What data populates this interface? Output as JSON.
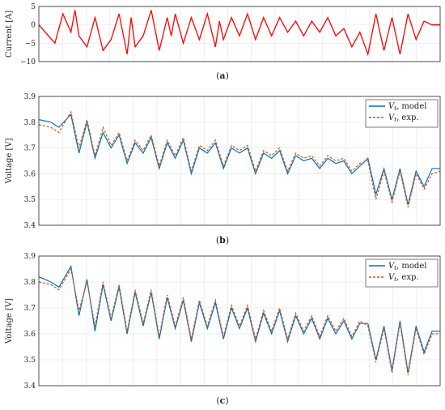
{
  "panels": [
    {
      "label_parts": [
        "(",
        "a",
        ")"
      ],
      "ylabel": "Current [A]",
      "ylim": [
        -10,
        5
      ],
      "yticks": [
        "5",
        "0",
        "−5",
        "−10"
      ]
    },
    {
      "label_parts": [
        "(",
        "b",
        ")"
      ],
      "ylabel": "Voltage [V]",
      "ylim": [
        3.4,
        3.9
      ],
      "yticks": [
        "3.9",
        "3.8",
        "3.7",
        "3.6",
        "3.5",
        "3.4"
      ],
      "legend": [
        {
          "sym": "V",
          "sub": "t",
          "suffix": ", model"
        },
        {
          "sym": "V",
          "sub": "t",
          "suffix": ", exp."
        }
      ]
    },
    {
      "label_parts": [
        "(",
        "c",
        ")"
      ],
      "ylabel": "Voltage [V]",
      "ylim": [
        3.4,
        3.9
      ],
      "yticks": [
        "3.9",
        "3.8",
        "3.7",
        "3.6",
        "3.5",
        "3.4"
      ],
      "legend": [
        {
          "sym": "V",
          "sub": "t",
          "suffix": ", model"
        },
        {
          "sym": "V",
          "sub": "t",
          "suffix": ", exp."
        }
      ]
    }
  ],
  "colors": {
    "current": "#ff0000",
    "model": "#0072bd",
    "exp": "#d95319",
    "grid": "#e6e6e6",
    "axis": "#262626"
  },
  "chart_data": [
    {
      "type": "line",
      "ylabel": "Current [A]",
      "ylim": [
        -10,
        5
      ],
      "grid": true,
      "series": [
        {
          "x": [
            0,
            4,
            6,
            8,
            9,
            10,
            12,
            14,
            16,
            18,
            20,
            22,
            23,
            24,
            26,
            28,
            30,
            32,
            33,
            34,
            36,
            38,
            40,
            42,
            44,
            45,
            46,
            48,
            50,
            52,
            54,
            56,
            58,
            60,
            62,
            64,
            66,
            68,
            70,
            72,
            74,
            76,
            78,
            80,
            82,
            84,
            86,
            88,
            90,
            92,
            94,
            96,
            98,
            100
          ],
          "values": [
            0,
            -5,
            3,
            -2,
            4,
            -3,
            -6,
            2,
            -7,
            -4,
            3,
            -8,
            2,
            -6,
            -3,
            4,
            -7,
            2,
            -3,
            3,
            -5,
            2,
            -4,
            3,
            -6,
            1,
            -4,
            2,
            -3,
            3,
            -4,
            2,
            -3,
            2,
            -2,
            1,
            -3,
            1,
            -2,
            2,
            -3,
            -1,
            -6,
            -2,
            -8,
            3,
            -7,
            2,
            -8,
            3,
            -4,
            1,
            0,
            0
          ]
        }
      ]
    },
    {
      "type": "line",
      "ylabel": "Voltage [V]",
      "ylim": [
        3.4,
        3.9
      ],
      "grid": true,
      "legend": "top-right",
      "x": [
        0,
        3,
        5,
        8,
        10,
        12,
        14,
        16,
        18,
        20,
        22,
        24,
        26,
        28,
        30,
        32,
        34,
        36,
        38,
        40,
        42,
        44,
        46,
        48,
        50,
        52,
        54,
        56,
        58,
        60,
        62,
        64,
        66,
        68,
        70,
        72,
        74,
        76,
        78,
        80,
        82,
        84,
        86,
        88,
        90,
        92,
        94,
        96,
        98,
        100
      ],
      "series": [
        {
          "values": [
            3.81,
            3.8,
            3.78,
            3.83,
            3.68,
            3.8,
            3.66,
            3.76,
            3.7,
            3.75,
            3.64,
            3.72,
            3.68,
            3.74,
            3.62,
            3.72,
            3.66,
            3.73,
            3.6,
            3.7,
            3.68,
            3.72,
            3.62,
            3.7,
            3.68,
            3.7,
            3.6,
            3.68,
            3.66,
            3.69,
            3.6,
            3.67,
            3.65,
            3.66,
            3.62,
            3.66,
            3.64,
            3.65,
            3.6,
            3.63,
            3.66,
            3.52,
            3.62,
            3.5,
            3.62,
            3.48,
            3.61,
            3.55,
            3.62,
            3.62
          ]
        },
        {
          "values": [
            3.79,
            3.78,
            3.76,
            3.84,
            3.7,
            3.81,
            3.67,
            3.78,
            3.71,
            3.76,
            3.65,
            3.73,
            3.69,
            3.75,
            3.63,
            3.73,
            3.67,
            3.74,
            3.61,
            3.71,
            3.69,
            3.73,
            3.63,
            3.71,
            3.69,
            3.71,
            3.61,
            3.69,
            3.67,
            3.7,
            3.61,
            3.68,
            3.66,
            3.67,
            3.63,
            3.67,
            3.65,
            3.66,
            3.61,
            3.64,
            3.65,
            3.5,
            3.61,
            3.49,
            3.61,
            3.47,
            3.6,
            3.54,
            3.6,
            3.61
          ]
        }
      ]
    },
    {
      "type": "line",
      "ylabel": "Voltage [V]",
      "ylim": [
        3.4,
        3.9
      ],
      "grid": true,
      "legend": "top-right",
      "x": [
        0,
        3,
        5,
        8,
        10,
        12,
        14,
        16,
        18,
        20,
        22,
        24,
        26,
        28,
        30,
        32,
        34,
        36,
        38,
        40,
        42,
        44,
        46,
        48,
        50,
        52,
        54,
        56,
        58,
        60,
        62,
        64,
        66,
        68,
        70,
        72,
        74,
        76,
        78,
        80,
        82,
        84,
        86,
        88,
        90,
        92,
        94,
        96,
        98,
        100
      ],
      "series": [
        {
          "values": [
            3.82,
            3.8,
            3.78,
            3.86,
            3.67,
            3.81,
            3.61,
            3.79,
            3.65,
            3.78,
            3.6,
            3.76,
            3.63,
            3.76,
            3.58,
            3.74,
            3.62,
            3.73,
            3.57,
            3.72,
            3.62,
            3.72,
            3.58,
            3.7,
            3.62,
            3.7,
            3.57,
            3.68,
            3.6,
            3.69,
            3.57,
            3.67,
            3.6,
            3.66,
            3.58,
            3.66,
            3.6,
            3.65,
            3.58,
            3.64,
            3.64,
            3.5,
            3.63,
            3.46,
            3.65,
            3.45,
            3.63,
            3.53,
            3.61,
            3.61
          ]
        },
        {
          "values": [
            3.8,
            3.79,
            3.77,
            3.85,
            3.69,
            3.8,
            3.63,
            3.8,
            3.66,
            3.79,
            3.61,
            3.77,
            3.64,
            3.77,
            3.59,
            3.75,
            3.63,
            3.74,
            3.58,
            3.73,
            3.63,
            3.73,
            3.59,
            3.71,
            3.63,
            3.71,
            3.58,
            3.69,
            3.61,
            3.7,
            3.58,
            3.68,
            3.61,
            3.67,
            3.59,
            3.67,
            3.61,
            3.66,
            3.59,
            3.65,
            3.63,
            3.49,
            3.62,
            3.45,
            3.64,
            3.44,
            3.62,
            3.52,
            3.6,
            3.6
          ]
        }
      ]
    }
  ]
}
